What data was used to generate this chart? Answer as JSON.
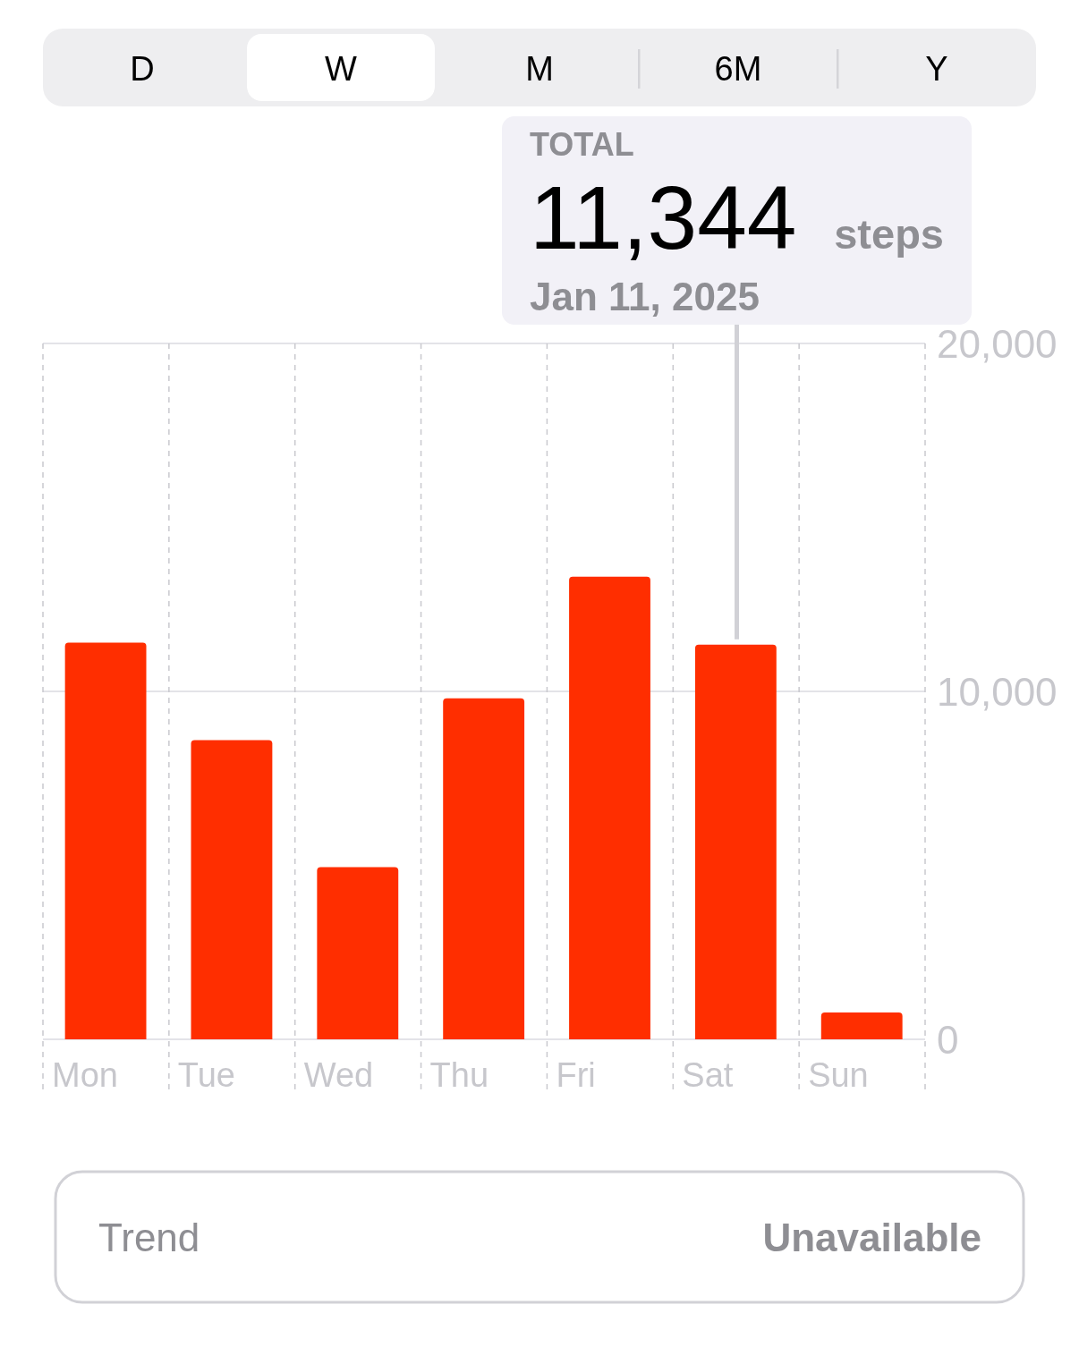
{
  "chart_data": {
    "type": "bar",
    "categories": [
      "Mon",
      "Tue",
      "Wed",
      "Thu",
      "Fri",
      "Sat",
      "Sun"
    ],
    "values": [
      11400,
      8600,
      4950,
      9800,
      13300,
      11344,
      770
    ],
    "color": "#ff2e00",
    "ylim": [
      0,
      20000
    ],
    "yticks": [
      0,
      {
        "value": 10000,
        "label": "10,000"
      },
      {
        "value": 20000,
        "label": "20,000"
      }
    ],
    "grid": true,
    "annotations": [
      "D",
      "W",
      "M",
      "6M",
      "Y",
      "TOTAL",
      "11,344",
      "steps",
      "Jan 11, 2025",
      "Trend",
      "Unavailable"
    ]
  }
}
